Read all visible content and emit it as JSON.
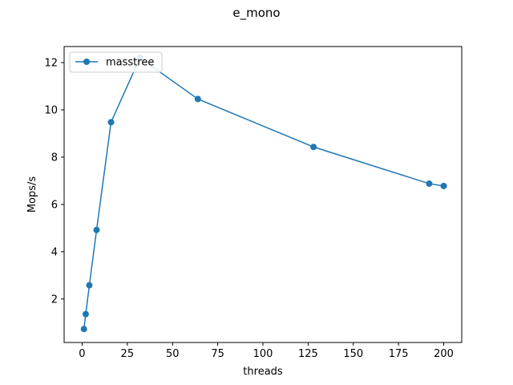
{
  "chart_data": {
    "type": "line",
    "title": "e_mono",
    "xlabel": "threads",
    "ylabel": "Mops/s",
    "xlim": [
      -9.95,
      209.95
    ],
    "ylim": [
      0.16,
      12.68
    ],
    "xticks": [
      0,
      25,
      50,
      75,
      100,
      125,
      150,
      175,
      200
    ],
    "yticks": [
      2,
      4,
      6,
      8,
      10,
      12
    ],
    "grid": false,
    "legend_position": "upper-left",
    "series": [
      {
        "name": "masstree",
        "color": "#1f77b4",
        "marker": "circle",
        "x": [
          1,
          2,
          4,
          8,
          16,
          32,
          64,
          128,
          192,
          200
        ],
        "y": [
          0.73,
          1.36,
          2.58,
          4.92,
          9.48,
          12.2,
          10.46,
          8.43,
          6.88,
          6.78
        ]
      }
    ]
  }
}
